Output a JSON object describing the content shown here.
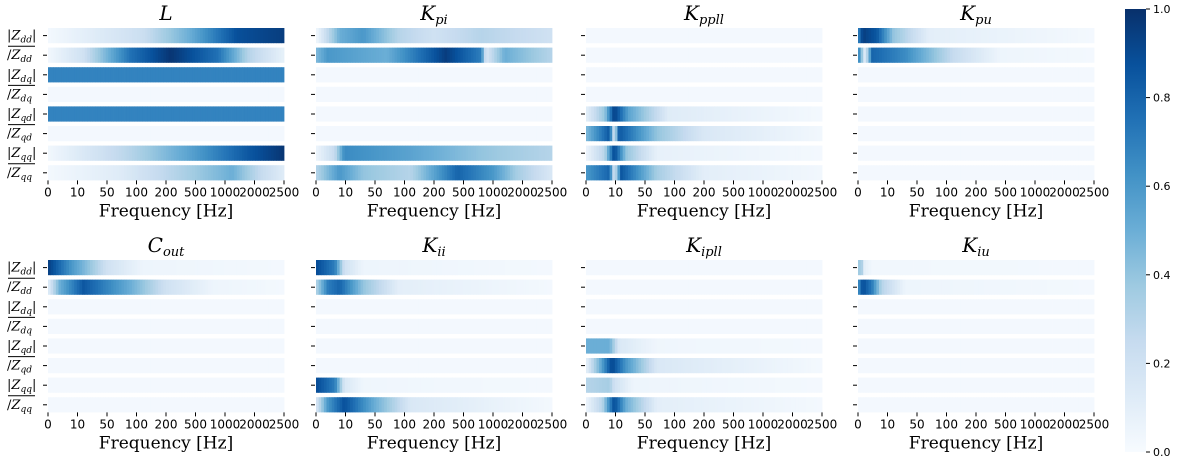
{
  "chart_data": {
    "type": "heatmap",
    "colormap": "Blues",
    "colorbar": {
      "min": 0.0,
      "max": 1.0,
      "ticks": [
        "0.0",
        "0.2",
        "0.4",
        "0.6",
        "0.8",
        "1.0"
      ]
    },
    "rows": [
      "|Z_dd|",
      "/Z_dd",
      "|Z_dq|",
      "/Z_dq",
      "|Z_qd|",
      "/Z_qd",
      "|Z_qq|",
      "/Z_qq"
    ],
    "xlabel": "Frequency [Hz]",
    "xticks": [
      "0",
      "10",
      "50",
      "100",
      "200",
      "500",
      "1000",
      "2000",
      "2500"
    ],
    "panels": [
      {
        "title": "L",
        "profiles": [
          [
            [
              0,
              0.02
            ],
            [
              0.4,
              0.22
            ],
            [
              0.6,
              0.5
            ],
            [
              0.8,
              0.88
            ],
            [
              1,
              0.95
            ]
          ],
          [
            [
              0,
              0.03
            ],
            [
              0.15,
              0.2
            ],
            [
              0.35,
              0.75
            ],
            [
              0.52,
              0.98
            ],
            [
              0.72,
              0.75
            ],
            [
              0.85,
              0.3
            ],
            [
              1,
              0.08
            ]
          ],
          [
            [
              0,
              0.68
            ],
            [
              1,
              0.68
            ]
          ],
          [
            [
              0,
              0.02
            ],
            [
              1,
              0.02
            ]
          ],
          [
            [
              0,
              0.68
            ],
            [
              1,
              0.68
            ]
          ],
          [
            [
              0,
              0.02
            ],
            [
              1,
              0.02
            ]
          ],
          [
            [
              0,
              0.03
            ],
            [
              0.35,
              0.3
            ],
            [
              0.6,
              0.55
            ],
            [
              0.85,
              0.85
            ],
            [
              1,
              0.98
            ]
          ],
          [
            [
              0,
              0.02
            ],
            [
              0.3,
              0.12
            ],
            [
              0.6,
              0.35
            ],
            [
              0.78,
              0.5
            ],
            [
              0.9,
              0.25
            ],
            [
              1,
              0.12
            ]
          ]
        ]
      },
      {
        "title": "K_pi",
        "profiles": [
          [
            [
              0,
              0.03
            ],
            [
              0.1,
              0.5
            ],
            [
              0.2,
              0.6
            ],
            [
              0.35,
              0.3
            ],
            [
              0.5,
              0.2
            ],
            [
              0.7,
              0.3
            ],
            [
              1,
              0.2
            ]
          ],
          [
            [
              0,
              0.45
            ],
            [
              0.05,
              0.6
            ],
            [
              0.3,
              0.5
            ],
            [
              0.55,
              0.95
            ],
            [
              0.7,
              0.7
            ],
            [
              0.72,
              0.15
            ],
            [
              0.8,
              0.5
            ],
            [
              1,
              0.3
            ]
          ],
          [
            [
              0,
              0.02
            ],
            [
              1,
              0.02
            ]
          ],
          [
            [
              0,
              0.02
            ],
            [
              1,
              0.02
            ]
          ],
          [
            [
              0,
              0.02
            ],
            [
              1,
              0.02
            ]
          ],
          [
            [
              0,
              0.02
            ],
            [
              1,
              0.02
            ]
          ],
          [
            [
              0,
              0.05
            ],
            [
              0.08,
              0.25
            ],
            [
              0.12,
              0.65
            ],
            [
              0.4,
              0.55
            ],
            [
              0.7,
              0.4
            ],
            [
              1,
              0.3
            ]
          ],
          [
            [
              0,
              0.3
            ],
            [
              0.1,
              0.6
            ],
            [
              0.2,
              0.4
            ],
            [
              0.4,
              0.3
            ],
            [
              0.6,
              0.8
            ],
            [
              0.75,
              0.6
            ],
            [
              0.85,
              0.35
            ],
            [
              1,
              0.15
            ]
          ]
        ]
      },
      {
        "title": "K_ppll",
        "profiles": [
          [
            [
              0,
              0.02
            ],
            [
              1,
              0.02
            ]
          ],
          [
            [
              0,
              0.02
            ],
            [
              1,
              0.02
            ]
          ],
          [
            [
              0,
              0.02
            ],
            [
              1,
              0.02
            ]
          ],
          [
            [
              0,
              0.02
            ],
            [
              1,
              0.02
            ]
          ],
          [
            [
              0,
              0.1
            ],
            [
              0.08,
              0.4
            ],
            [
              0.12,
              0.95
            ],
            [
              0.18,
              0.55
            ],
            [
              0.35,
              0.12
            ],
            [
              1,
              0.02
            ]
          ],
          [
            [
              0,
              0.45
            ],
            [
              0.1,
              0.85
            ],
            [
              0.12,
              0.15
            ],
            [
              0.14,
              0.85
            ],
            [
              0.3,
              0.4
            ],
            [
              0.5,
              0.15
            ],
            [
              1,
              0.03
            ]
          ],
          [
            [
              0,
              0.05
            ],
            [
              0.08,
              0.3
            ],
            [
              0.12,
              0.92
            ],
            [
              0.17,
              0.4
            ],
            [
              0.3,
              0.08
            ],
            [
              1,
              0.02
            ]
          ],
          [
            [
              0,
              0.6
            ],
            [
              0.1,
              0.8
            ],
            [
              0.12,
              0.15
            ],
            [
              0.15,
              0.85
            ],
            [
              0.3,
              0.35
            ],
            [
              0.5,
              0.1
            ],
            [
              1,
              0.03
            ]
          ]
        ]
      },
      {
        "title": "K_pu",
        "profiles": [
          [
            [
              0,
              0.65
            ],
            [
              0.02,
              0.95
            ],
            [
              0.08,
              0.85
            ],
            [
              0.15,
              0.4
            ],
            [
              0.3,
              0.1
            ],
            [
              1,
              0.02
            ]
          ],
          [
            [
              0,
              0.75
            ],
            [
              0.03,
              0.1
            ],
            [
              0.06,
              0.8
            ],
            [
              0.2,
              0.65
            ],
            [
              0.4,
              0.25
            ],
            [
              0.6,
              0.05
            ],
            [
              1,
              0.02
            ]
          ],
          [
            [
              0,
              0.02
            ],
            [
              1,
              0.02
            ]
          ],
          [
            [
              0,
              0.02
            ],
            [
              1,
              0.02
            ]
          ],
          [
            [
              0,
              0.02
            ],
            [
              1,
              0.02
            ]
          ],
          [
            [
              0,
              0.02
            ],
            [
              1,
              0.02
            ]
          ],
          [
            [
              0,
              0.02
            ],
            [
              1,
              0.02
            ]
          ],
          [
            [
              0,
              0.02
            ],
            [
              1,
              0.02
            ]
          ]
        ]
      },
      {
        "title": "C_out",
        "profiles": [
          [
            [
              0,
              0.95
            ],
            [
              0.1,
              0.6
            ],
            [
              0.25,
              0.2
            ],
            [
              0.4,
              0.05
            ],
            [
              1,
              0.02
            ]
          ],
          [
            [
              0,
              0.1
            ],
            [
              0.05,
              0.5
            ],
            [
              0.15,
              0.85
            ],
            [
              0.35,
              0.5
            ],
            [
              0.5,
              0.2
            ],
            [
              0.7,
              0.05
            ],
            [
              1,
              0.02
            ]
          ],
          [
            [
              0,
              0.02
            ],
            [
              1,
              0.02
            ]
          ],
          [
            [
              0,
              0.02
            ],
            [
              1,
              0.02
            ]
          ],
          [
            [
              0,
              0.02
            ],
            [
              1,
              0.02
            ]
          ],
          [
            [
              0,
              0.02
            ],
            [
              1,
              0.02
            ]
          ],
          [
            [
              0,
              0.02
            ],
            [
              1,
              0.02
            ]
          ],
          [
            [
              0,
              0.02
            ],
            [
              1,
              0.02
            ]
          ]
        ]
      },
      {
        "title": "K_ii",
        "profiles": [
          [
            [
              0,
              0.9
            ],
            [
              0.08,
              0.7
            ],
            [
              0.12,
              0.2
            ],
            [
              0.2,
              0.05
            ],
            [
              1,
              0.02
            ]
          ],
          [
            [
              0,
              0.3
            ],
            [
              0.05,
              0.7
            ],
            [
              0.1,
              0.8
            ],
            [
              0.2,
              0.4
            ],
            [
              0.35,
              0.1
            ],
            [
              1,
              0.02
            ]
          ],
          [
            [
              0,
              0.02
            ],
            [
              1,
              0.02
            ]
          ],
          [
            [
              0,
              0.02
            ],
            [
              1,
              0.02
            ]
          ],
          [
            [
              0,
              0.02
            ],
            [
              1,
              0.02
            ]
          ],
          [
            [
              0,
              0.02
            ],
            [
              1,
              0.02
            ]
          ],
          [
            [
              0,
              0.9
            ],
            [
              0.08,
              0.7
            ],
            [
              0.12,
              0.15
            ],
            [
              0.2,
              0.04
            ],
            [
              1,
              0.02
            ]
          ],
          [
            [
              0,
              0.15
            ],
            [
              0.05,
              0.6
            ],
            [
              0.12,
              0.88
            ],
            [
              0.25,
              0.5
            ],
            [
              0.4,
              0.15
            ],
            [
              1,
              0.02
            ]
          ]
        ]
      },
      {
        "title": "K_ipll",
        "profiles": [
          [
            [
              0,
              0.02
            ],
            [
              1,
              0.02
            ]
          ],
          [
            [
              0,
              0.02
            ],
            [
              1,
              0.02
            ]
          ],
          [
            [
              0,
              0.02
            ],
            [
              1,
              0.02
            ]
          ],
          [
            [
              0,
              0.02
            ],
            [
              1,
              0.02
            ]
          ],
          [
            [
              0,
              0.5
            ],
            [
              0.1,
              0.5
            ],
            [
              0.14,
              0.15
            ],
            [
              0.3,
              0.04
            ],
            [
              1,
              0.02
            ]
          ],
          [
            [
              0,
              0.08
            ],
            [
              0.06,
              0.5
            ],
            [
              0.11,
              0.92
            ],
            [
              0.17,
              0.6
            ],
            [
              0.3,
              0.15
            ],
            [
              1,
              0.02
            ]
          ],
          [
            [
              0,
              0.3
            ],
            [
              0.1,
              0.35
            ],
            [
              0.12,
              0.2
            ],
            [
              0.2,
              0.05
            ],
            [
              1,
              0.02
            ]
          ],
          [
            [
              0,
              0.05
            ],
            [
              0.07,
              0.3
            ],
            [
              0.12,
              0.9
            ],
            [
              0.17,
              0.5
            ],
            [
              0.3,
              0.1
            ],
            [
              1,
              0.02
            ]
          ]
        ]
      },
      {
        "title": "K_iu",
        "profiles": [
          [
            [
              0,
              0.2
            ],
            [
              0.01,
              0.5
            ],
            [
              0.025,
              0.1
            ],
            [
              0.06,
              0.03
            ],
            [
              1,
              0.02
            ]
          ],
          [
            [
              0,
              0.6
            ],
            [
              0.02,
              0.9
            ],
            [
              0.06,
              0.7
            ],
            [
              0.1,
              0.3
            ],
            [
              0.2,
              0.05
            ],
            [
              1,
              0.02
            ]
          ],
          [
            [
              0,
              0.02
            ],
            [
              1,
              0.02
            ]
          ],
          [
            [
              0,
              0.02
            ],
            [
              1,
              0.02
            ]
          ],
          [
            [
              0,
              0.02
            ],
            [
              1,
              0.02
            ]
          ],
          [
            [
              0,
              0.02
            ],
            [
              1,
              0.02
            ]
          ],
          [
            [
              0,
              0.02
            ],
            [
              1,
              0.02
            ]
          ],
          [
            [
              0,
              0.02
            ],
            [
              1,
              0.02
            ]
          ]
        ]
      }
    ]
  }
}
